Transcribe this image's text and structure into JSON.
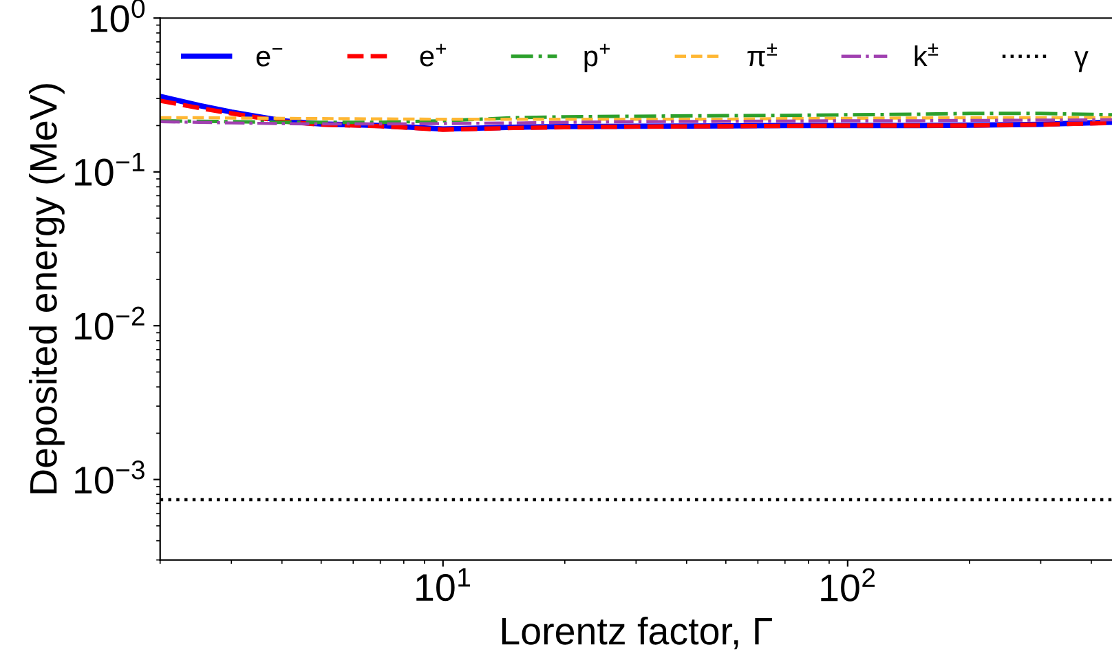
{
  "chart_data": {
    "type": "line",
    "xlabel": "Lorentz factor, Γ",
    "ylabel": "Deposited energy (MeV)",
    "log": "xy",
    "xlim": [
      2,
      450
    ],
    "ylim": [
      0.0003,
      1
    ],
    "xticks": [
      {
        "value": 10,
        "label": "10$^{1}$"
      },
      {
        "value": 100,
        "label": "10$^{2}$"
      }
    ],
    "yticks": [
      {
        "value": 0.001,
        "label": "10$^{−3}$"
      },
      {
        "value": 0.01,
        "label": "10$^{−2}$"
      },
      {
        "value": 0.1,
        "label": "10$^{−1}$"
      },
      {
        "value": 1,
        "label": "10$^{0}$"
      }
    ],
    "grid": false,
    "legend": "top",
    "marker": "none",
    "x": [
      2,
      2.5,
      3,
      4,
      5,
      7,
      10,
      15,
      20,
      30,
      50,
      70,
      100,
      150,
      200,
      300,
      450
    ],
    "series": [
      {
        "name": "e$^{−}$",
        "color": "#0000ff",
        "line_style": "solid",
        "values": [
          0.31,
          0.27,
          0.245,
          0.215,
          0.205,
          0.2,
          0.19,
          0.195,
          0.197,
          0.198,
          0.199,
          0.2,
          0.2,
          0.2,
          0.201,
          0.204,
          0.21
        ]
      },
      {
        "name": "e$^{+}$",
        "color": "#ff0000",
        "line_style": "dashed",
        "values": [
          0.29,
          0.26,
          0.24,
          0.213,
          0.203,
          0.198,
          0.188,
          0.193,
          0.195,
          0.197,
          0.198,
          0.199,
          0.2,
          0.2,
          0.2,
          0.203,
          0.208
        ]
      },
      {
        "name": "p$^{+}$",
        "color": "#2ca02c",
        "line_style": "dashdot",
        "values": [
          0.215,
          0.213,
          0.212,
          0.21,
          0.21,
          0.21,
          0.215,
          0.225,
          0.228,
          0.23,
          0.232,
          0.233,
          0.235,
          0.237,
          0.24,
          0.24,
          0.235
        ]
      },
      {
        "name": "π$^{±}$",
        "color": "#ffb733",
        "line_style": "dashed",
        "values": [
          0.225,
          0.225,
          0.224,
          0.223,
          0.222,
          0.221,
          0.22,
          0.22,
          0.22,
          0.22,
          0.22,
          0.222,
          0.223,
          0.224,
          0.225,
          0.225,
          0.225
        ]
      },
      {
        "name": "k$^{±}$",
        "color": "#a040b0",
        "line_style": "dashdot",
        "values": [
          0.212,
          0.21,
          0.208,
          0.206,
          0.205,
          0.205,
          0.206,
          0.208,
          0.21,
          0.212,
          0.213,
          0.214,
          0.215,
          0.215,
          0.216,
          0.217,
          0.218
        ]
      },
      {
        "name": "γ",
        "color": "#000000",
        "line_style": "dotted",
        "x": [
          2,
          450
        ],
        "values": [
          0.00074,
          0.00074
        ]
      }
    ]
  }
}
